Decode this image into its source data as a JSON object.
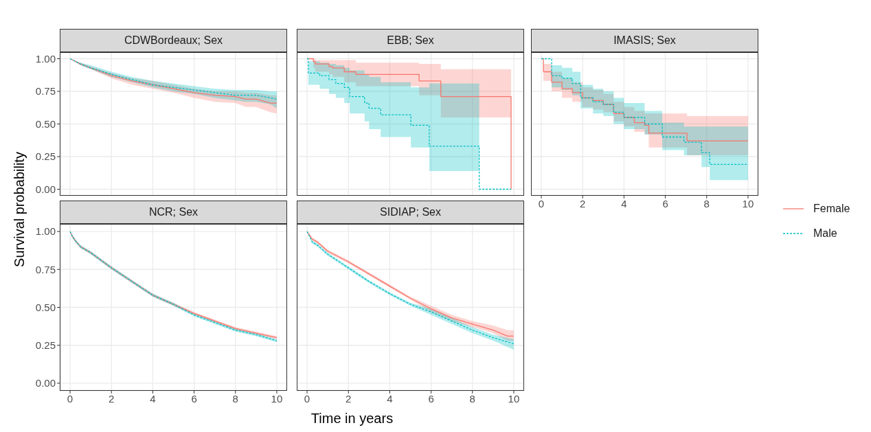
{
  "chart_data": [
    {
      "type": "line",
      "title": "CDWBordeaux; Sex",
      "xlim": [
        -0.5,
        10.5
      ],
      "xticks": [
        0,
        2,
        4,
        6,
        8,
        10
      ],
      "ylim": [
        -0.05,
        1.05
      ],
      "yticks": [
        {
          "value": 0,
          "label": "0.00"
        },
        {
          "value": 0.25,
          "label": "0.25"
        },
        {
          "value": 0.5,
          "label": "0.50"
        },
        {
          "value": 0.75,
          "label": "0.75"
        },
        {
          "value": 1,
          "label": "1.00"
        }
      ],
      "grid": true,
      "tick_labels": "y",
      "legend": "right",
      "series": [
        {
          "name": "Female",
          "color": "#f8766d",
          "line_style": "solid",
          "x": [
            0,
            0.5,
            1,
            2,
            3,
            4,
            5,
            6,
            7,
            8,
            8.5,
            9,
            9.7,
            10
          ],
          "values": [
            1,
            0.96,
            0.93,
            0.87,
            0.83,
            0.8,
            0.77,
            0.74,
            0.72,
            0.71,
            0.69,
            0.69,
            0.66,
            0.66
          ],
          "lower": [
            1,
            0.95,
            0.92,
            0.85,
            0.8,
            0.77,
            0.74,
            0.7,
            0.67,
            0.66,
            0.63,
            0.63,
            0.59,
            0.58
          ],
          "upper": [
            1,
            0.97,
            0.94,
            0.89,
            0.85,
            0.83,
            0.8,
            0.77,
            0.75,
            0.75,
            0.74,
            0.74,
            0.72,
            0.72
          ]
        },
        {
          "name": "Male",
          "color": "#00bfc4",
          "line_style": "dashed",
          "x": [
            0,
            0.5,
            1,
            2,
            3,
            4,
            5,
            6,
            7,
            8,
            8.5,
            9,
            9.7,
            10
          ],
          "values": [
            1,
            0.96,
            0.93,
            0.88,
            0.84,
            0.8,
            0.78,
            0.76,
            0.74,
            0.72,
            0.72,
            0.72,
            0.7,
            0.69
          ],
          "lower": [
            1,
            0.95,
            0.92,
            0.86,
            0.82,
            0.78,
            0.75,
            0.73,
            0.7,
            0.68,
            0.67,
            0.67,
            0.65,
            0.62
          ],
          "upper": [
            1,
            0.97,
            0.95,
            0.9,
            0.86,
            0.83,
            0.81,
            0.79,
            0.77,
            0.76,
            0.76,
            0.76,
            0.75,
            0.75
          ]
        }
      ]
    },
    {
      "type": "step",
      "title": "EBB; Sex",
      "xlim": [
        -0.5,
        10.5
      ],
      "xticks": [
        0,
        2,
        4,
        6,
        8,
        10
      ],
      "ylim": [
        -0.05,
        1.05
      ],
      "yticks": [
        0,
        0.25,
        0.5,
        0.75,
        1
      ],
      "grid": true,
      "tick_labels": false,
      "series": [
        {
          "color": "#f8766d",
          "line_style": "solid",
          "x": [
            0,
            0.3,
            0.39,
            1.06,
            1.24,
            1.8,
            2.36,
            5.42,
            6.47,
            9.87
          ],
          "values": [
            1,
            0.98,
            0.96,
            0.94,
            0.93,
            0.9,
            0.88,
            0.83,
            0.71,
            0
          ],
          "lower": [
            1,
            0.93,
            0.9,
            0.88,
            0.86,
            0.82,
            0.79,
            0.72,
            0.55,
            0.55
          ],
          "upper": [
            1,
            1,
            0.99,
            0.99,
            0.99,
            0.99,
            0.97,
            0.96,
            0.92,
            0.92
          ]
        },
        {
          "color": "#00bfc4",
          "line_style": "dashed",
          "x": [
            0,
            0.06,
            0.61,
            1.06,
            1.39,
            1.8,
            2.06,
            2.78,
            3.0,
            3.56,
            5.02,
            5.91,
            8.33,
            9.87
          ],
          "values": [
            1,
            0.89,
            0.87,
            0.84,
            0.81,
            0.78,
            0.71,
            0.66,
            0.62,
            0.57,
            0.49,
            0.33,
            0,
            0
          ],
          "lower": [
            1,
            0.8,
            0.77,
            0.73,
            0.7,
            0.66,
            0.58,
            0.52,
            0.46,
            0.4,
            0.32,
            0.14,
            0.14,
            null
          ],
          "upper": [
            1,
            0.98,
            0.97,
            0.96,
            0.95,
            0.93,
            0.91,
            0.88,
            0.86,
            0.82,
            0.78,
            0.81,
            0.81,
            null
          ]
        }
      ]
    },
    {
      "type": "step",
      "title": "IMASIS; Sex",
      "xlim": [
        -0.5,
        10.5
      ],
      "xticks": [
        0,
        2,
        4,
        6,
        8,
        10
      ],
      "ylim": [
        -0.05,
        1.05
      ],
      "yticks": [
        0,
        0.25,
        0.5,
        0.75,
        1
      ],
      "grid": true,
      "tick_labels": "x",
      "series": [
        {
          "color": "#f8766d",
          "line_style": "solid",
          "x": [
            0,
            0.1,
            0.5,
            1,
            1.5,
            2,
            2.5,
            3,
            3.5,
            4,
            4.5,
            5,
            5.2,
            7.05,
            10
          ],
          "values": [
            1,
            0.9,
            0.82,
            0.77,
            0.74,
            0.7,
            0.68,
            0.65,
            0.58,
            0.55,
            0.51,
            0.49,
            0.43,
            0.37,
            0.37
          ],
          "lower": [
            1,
            0.83,
            0.75,
            0.7,
            0.67,
            0.63,
            0.61,
            0.59,
            0.52,
            0.48,
            0.44,
            0.42,
            0.32,
            0.26,
            0.26
          ],
          "upper": [
            1,
            0.96,
            0.9,
            0.85,
            0.82,
            0.78,
            0.76,
            0.73,
            0.67,
            0.63,
            0.6,
            0.58,
            0.58,
            0.56,
            0.56
          ]
        },
        {
          "color": "#00bfc4",
          "line_style": "dashed",
          "x": [
            0,
            0.5,
            1,
            1.5,
            1.9,
            2.5,
            3,
            3.5,
            4,
            5,
            5.85,
            6.9,
            7.75,
            8.15,
            10
          ],
          "values": [
            1,
            0.87,
            0.85,
            0.81,
            0.7,
            0.67,
            0.65,
            0.59,
            0.55,
            0.5,
            0.4,
            0.36,
            0.28,
            0.19,
            0.19
          ],
          "lower": [
            1,
            0.78,
            0.76,
            0.72,
            0.62,
            0.58,
            0.56,
            0.5,
            0.46,
            0.42,
            0.3,
            0.26,
            0.17,
            0.07,
            0.07
          ],
          "upper": [
            1,
            0.95,
            0.93,
            0.9,
            0.8,
            0.77,
            0.75,
            0.7,
            0.66,
            0.6,
            0.51,
            0.48,
            0.48,
            0.48,
            0.48
          ]
        }
      ]
    },
    {
      "type": "line",
      "title": "NCR; Sex",
      "ylabel": "Survival probability",
      "xlim": [
        -0.5,
        10.5
      ],
      "xticks": [
        0,
        2,
        4,
        6,
        8,
        10
      ],
      "ylim": [
        -0.05,
        1.05
      ],
      "yticks": [
        {
          "value": 0,
          "label": "0.00"
        },
        {
          "value": 0.25,
          "label": "0.25"
        },
        {
          "value": 0.5,
          "label": "0.50"
        },
        {
          "value": 0.75,
          "label": "0.75"
        },
        {
          "value": 1,
          "label": "1.00"
        }
      ],
      "grid": true,
      "series": [
        {
          "color": "#f8766d",
          "line_style": "solid",
          "x": [
            0,
            0.1,
            0.25,
            0.5,
            1,
            1.5,
            2,
            3,
            4,
            5,
            6,
            7,
            8,
            9,
            10
          ],
          "values": [
            1,
            0.97,
            0.94,
            0.9,
            0.86,
            0.81,
            0.76,
            0.67,
            0.58,
            0.52,
            0.46,
            0.41,
            0.36,
            0.33,
            0.3
          ],
          "lower": [
            1,
            0.96,
            0.93,
            0.89,
            0.85,
            0.8,
            0.75,
            0.66,
            0.57,
            0.51,
            0.45,
            0.4,
            0.35,
            0.32,
            0.29
          ],
          "upper": [
            1,
            0.98,
            0.95,
            0.91,
            0.87,
            0.82,
            0.77,
            0.68,
            0.59,
            0.53,
            0.47,
            0.42,
            0.37,
            0.34,
            0.31
          ]
        },
        {
          "color": "#00bfc4",
          "line_style": "dashed",
          "x": [
            0,
            0.1,
            0.25,
            0.5,
            1,
            1.5,
            2,
            3,
            4,
            5,
            6,
            7,
            8,
            9,
            10
          ],
          "values": [
            1,
            0.97,
            0.94,
            0.9,
            0.86,
            0.81,
            0.76,
            0.67,
            0.58,
            0.52,
            0.45,
            0.4,
            0.35,
            0.32,
            0.28
          ],
          "lower": [
            1,
            0.96,
            0.93,
            0.89,
            0.85,
            0.8,
            0.75,
            0.66,
            0.57,
            0.51,
            0.44,
            0.39,
            0.34,
            0.31,
            0.27
          ],
          "upper": [
            1,
            0.98,
            0.95,
            0.91,
            0.87,
            0.82,
            0.77,
            0.68,
            0.59,
            0.53,
            0.46,
            0.41,
            0.36,
            0.33,
            0.29
          ]
        }
      ]
    },
    {
      "type": "line",
      "title": "SIDIAP; Sex",
      "xlabel": "Time in years",
      "xlim": [
        -0.5,
        10.5
      ],
      "xticks": [
        0,
        2,
        4,
        6,
        8,
        10
      ],
      "ylim": [
        -0.05,
        1.05
      ],
      "yticks": [
        0,
        0.25,
        0.5,
        0.75,
        1
      ],
      "grid": true,
      "tick_labels": "x",
      "series": [
        {
          "color": "#f8766d",
          "line_style": "solid",
          "x": [
            0,
            0.25,
            0.5,
            1,
            2,
            3,
            4,
            5,
            6,
            7,
            8,
            9,
            9.7,
            10
          ],
          "values": [
            1,
            0.95,
            0.93,
            0.87,
            0.8,
            0.72,
            0.64,
            0.56,
            0.49,
            0.43,
            0.39,
            0.35,
            0.31,
            0.31
          ],
          "lower": [
            1,
            0.94,
            0.92,
            0.86,
            0.79,
            0.71,
            0.63,
            0.55,
            0.47,
            0.41,
            0.37,
            0.33,
            0.28,
            0.28
          ],
          "upper": [
            1,
            0.96,
            0.94,
            0.88,
            0.81,
            0.73,
            0.65,
            0.57,
            0.51,
            0.45,
            0.41,
            0.38,
            0.35,
            0.35
          ]
        },
        {
          "color": "#00bfc4",
          "line_style": "dashed",
          "x": [
            0,
            0.25,
            0.5,
            1,
            2,
            3,
            4,
            5,
            6,
            7,
            8,
            9,
            10
          ],
          "values": [
            1,
            0.93,
            0.91,
            0.85,
            0.76,
            0.67,
            0.59,
            0.52,
            0.47,
            0.41,
            0.35,
            0.3,
            0.26
          ],
          "lower": [
            1,
            0.92,
            0.9,
            0.84,
            0.75,
            0.66,
            0.58,
            0.51,
            0.45,
            0.39,
            0.33,
            0.28,
            0.22
          ],
          "upper": [
            1,
            0.94,
            0.92,
            0.86,
            0.77,
            0.68,
            0.6,
            0.53,
            0.49,
            0.43,
            0.37,
            0.32,
            0.29
          ]
        }
      ]
    }
  ]
}
